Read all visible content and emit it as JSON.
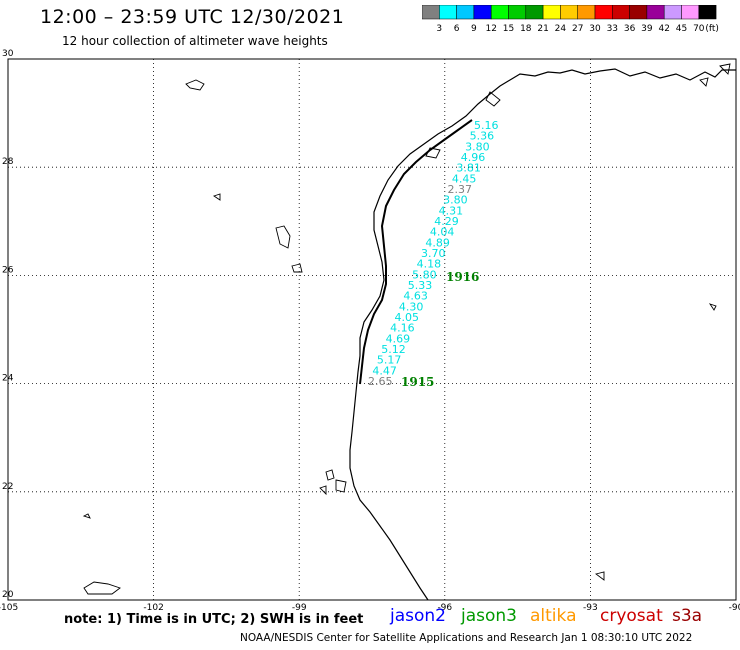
{
  "header": {
    "title": "12:00 – 23:59 UTC 12/30/2021",
    "subtitle": "12 hour collection of altimeter wave heights"
  },
  "colorbar": {
    "unit": "(ft)",
    "labels": [
      "3",
      "6",
      "9",
      "12",
      "15",
      "18",
      "21",
      "24",
      "27",
      "30",
      "33",
      "36",
      "39",
      "42",
      "45",
      "70"
    ],
    "colors": [
      "#808080",
      "#00ffff",
      "#00c8ff",
      "#0000ff",
      "#00ff00",
      "#00cc00",
      "#009900",
      "#ffff00",
      "#ffcc00",
      "#ff9900",
      "#ff0000",
      "#cc0000",
      "#990000",
      "#990099",
      "#cc99ff",
      "#ff99ff",
      "#000000"
    ]
  },
  "map": {
    "lon_range": [
      -105,
      -90
    ],
    "lat_range": [
      20,
      30
    ],
    "lon_labels": [
      "-105",
      "-102",
      "-99",
      "-96",
      "-93",
      "-90"
    ],
    "lat_labels": [
      "30",
      "28",
      "26",
      "24",
      "22",
      "20"
    ],
    "colors": {
      "wave_cyan": "#00e0e0",
      "wave_gray": "#808080",
      "pass_label": "#008000"
    }
  },
  "wave_readings": [
    {
      "value": "5.16",
      "color": "cyan"
    },
    {
      "value": "5.36",
      "color": "cyan"
    },
    {
      "value": "3.80",
      "color": "cyan"
    },
    {
      "value": "4.96",
      "color": "cyan"
    },
    {
      "value": "3.81",
      "color": "cyan"
    },
    {
      "value": "4.45",
      "color": "cyan"
    },
    {
      "value": "2.37",
      "color": "gray"
    },
    {
      "value": "3.80",
      "color": "cyan"
    },
    {
      "value": "4.31",
      "color": "cyan"
    },
    {
      "value": "4.29",
      "color": "cyan"
    },
    {
      "value": "4.04",
      "color": "cyan"
    },
    {
      "value": "4.89",
      "color": "cyan"
    },
    {
      "value": "3.70",
      "color": "cyan"
    },
    {
      "value": "4.18",
      "color": "cyan"
    },
    {
      "value": "5.80",
      "color": "cyan"
    },
    {
      "value": "5.33",
      "color": "cyan"
    },
    {
      "value": "4.63",
      "color": "cyan"
    },
    {
      "value": "4.30",
      "color": "cyan"
    },
    {
      "value": "4.05",
      "color": "cyan"
    },
    {
      "value": "4.16",
      "color": "cyan"
    },
    {
      "value": "4.69",
      "color": "cyan"
    },
    {
      "value": "5.12",
      "color": "cyan"
    },
    {
      "value": "5.17",
      "color": "cyan"
    },
    {
      "value": "4.47",
      "color": "cyan"
    },
    {
      "value": "2.65",
      "color": "gray"
    }
  ],
  "pass_times": [
    "1916",
    "1915"
  ],
  "footer": {
    "note": "note: 1) Time is in UTC; 2) SWH is in feet",
    "satellites": [
      {
        "name": "jason2",
        "color": "#0000ff"
      },
      {
        "name": "jason3",
        "color": "#009900"
      },
      {
        "name": "altika",
        "color": "#ff9900"
      },
      {
        "name": "cryosat",
        "color": "#cc0000"
      },
      {
        "name": "s3a",
        "color": "#990000"
      }
    ],
    "credit": "NOAA/NESDIS Center for Satellite Applications and Research    Jan  1 08:30:10 UTC 2022"
  }
}
